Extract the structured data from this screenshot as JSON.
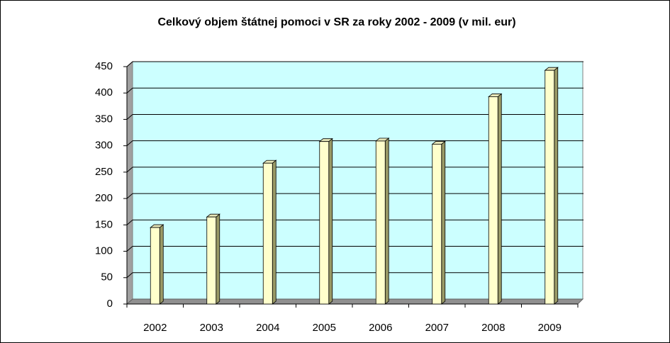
{
  "chart_data": {
    "type": "bar3d",
    "title": "Celkový objem štátnej pomoci v SR za roky 2002 -  2009 (v mil. eur)",
    "categories": [
      "2002",
      "2003",
      "2004",
      "2005",
      "2006",
      "2007",
      "2008",
      "2009"
    ],
    "values": [
      145,
      165,
      267,
      308,
      309,
      303,
      393,
      443
    ],
    "color": "#ffffcc",
    "ylim": [
      0,
      450
    ],
    "yticks": [
      0,
      50,
      100,
      150,
      200,
      250,
      300,
      350,
      400,
      450
    ],
    "grid": true
  }
}
